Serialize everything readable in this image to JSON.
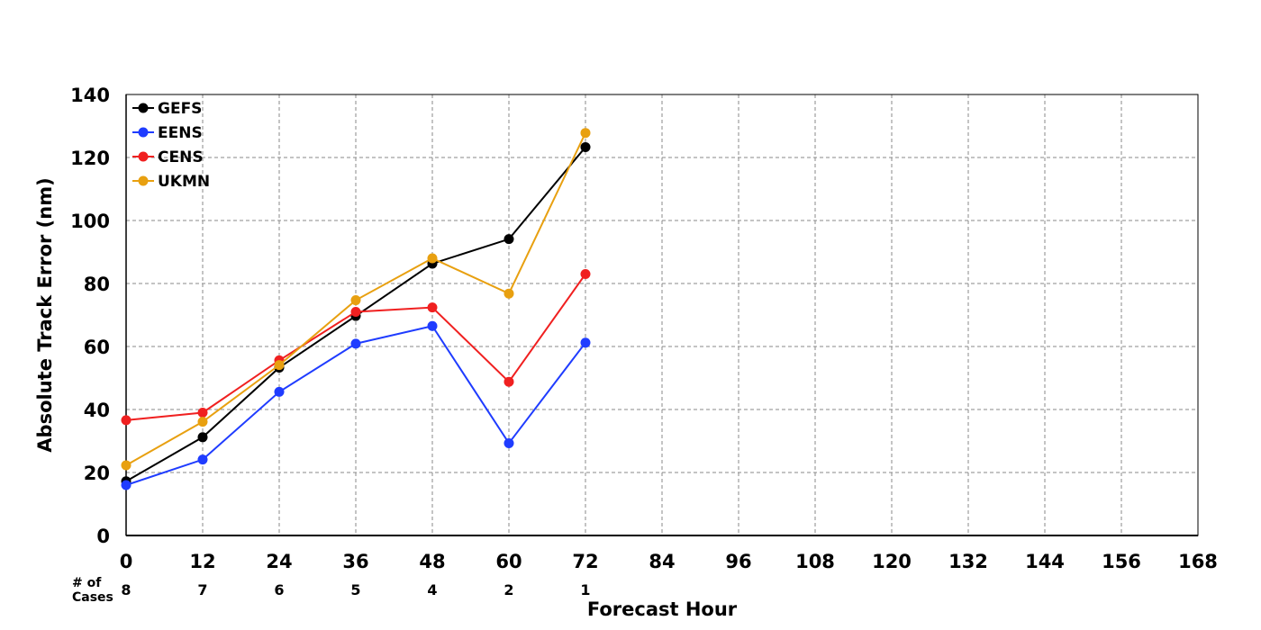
{
  "chart_data": {
    "type": "line",
    "title": "",
    "xlabel": "Forecast Hour",
    "ylabel": "Absolute Track Error (nm)",
    "xlim": [
      0,
      168
    ],
    "ylim": [
      0,
      140
    ],
    "x_ticks": [
      0,
      12,
      24,
      36,
      48,
      60,
      72,
      84,
      96,
      108,
      120,
      132,
      144,
      156,
      168
    ],
    "y_ticks": [
      0,
      20,
      40,
      60,
      80,
      100,
      120,
      140
    ],
    "grid": true,
    "legend_position": "top-left",
    "x": [
      0,
      12,
      24,
      36,
      48,
      60,
      72
    ],
    "series": [
      {
        "name": "GEFS",
        "color": "#000000",
        "values": [
          17.2,
          31.2,
          53.3,
          69.7,
          86.3,
          94.1,
          123.3
        ]
      },
      {
        "name": "EENS",
        "color": "#1f3cff",
        "values": [
          16.0,
          24.1,
          45.6,
          60.9,
          66.5,
          29.3,
          61.2
        ]
      },
      {
        "name": "CENS",
        "color": "#f02020",
        "values": [
          36.6,
          39.0,
          55.6,
          71.0,
          72.4,
          48.8,
          83.0
        ]
      },
      {
        "name": "UKMN",
        "color": "#e8a010",
        "values": [
          22.3,
          36.1,
          54.1,
          74.7,
          88.0,
          76.8,
          127.8
        ]
      }
    ],
    "cases": {
      "label_line1": "# of",
      "label_line2": "Cases",
      "x": [
        0,
        12,
        24,
        36,
        48,
        60,
        72
      ],
      "values": [
        "8",
        "7",
        "6",
        "5",
        "4",
        "2",
        "1"
      ]
    }
  }
}
